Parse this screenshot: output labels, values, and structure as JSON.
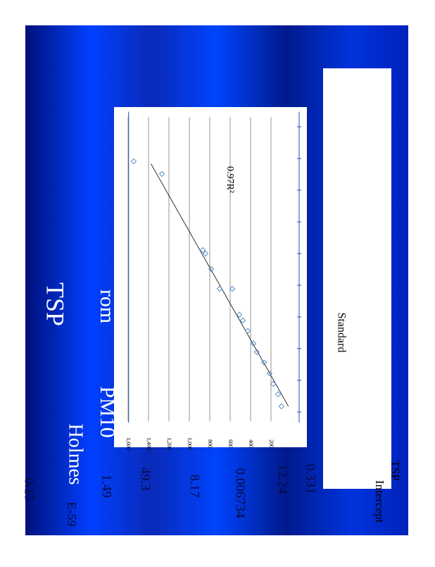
{
  "box": {
    "label": "Standard",
    "header": [
      "TSP",
      "Intercept"
    ]
  },
  "labels": {
    "rom": "rom",
    "pm": "PM10",
    "tsp": "TSP",
    "holmes": "Holmes",
    "exp": "E-59"
  },
  "numbers": [
    "0.331",
    "12.24",
    "0.006734",
    "8.17",
    "49.3",
    "1.49",
    "0.15"
  ],
  "chart_data": {
    "type": "scatter",
    "annotation": "0.97R²",
    "x": [
      0.18,
      0.56,
      0.89,
      1.22,
      1.56,
      1.89,
      2.16,
      2.56,
      2.89,
      3.07,
      3.89,
      3.89,
      4.51,
      5.0,
      5.11,
      7.51,
      7.91
    ],
    "values": [
      97,
      131,
      179,
      214,
      269,
      338,
      372,
      428,
      476,
      510,
      579,
      703,
      786,
      841,
      869,
      1269,
      1545
    ],
    "color": "#5b8fc9",
    "xlim": [
      0,
      9.3
    ],
    "ylim": [
      0,
      1650
    ],
    "yticks": [
      200,
      400,
      600,
      800,
      {
        "value": 1000,
        "label": "1,000"
      },
      {
        "value": 1200,
        "label": "1,200"
      },
      {
        "value": 1400,
        "label": "1,400"
      },
      {
        "value": 1600,
        "label": "1,600"
      }
    ],
    "trendline": true,
    "grid": true
  }
}
